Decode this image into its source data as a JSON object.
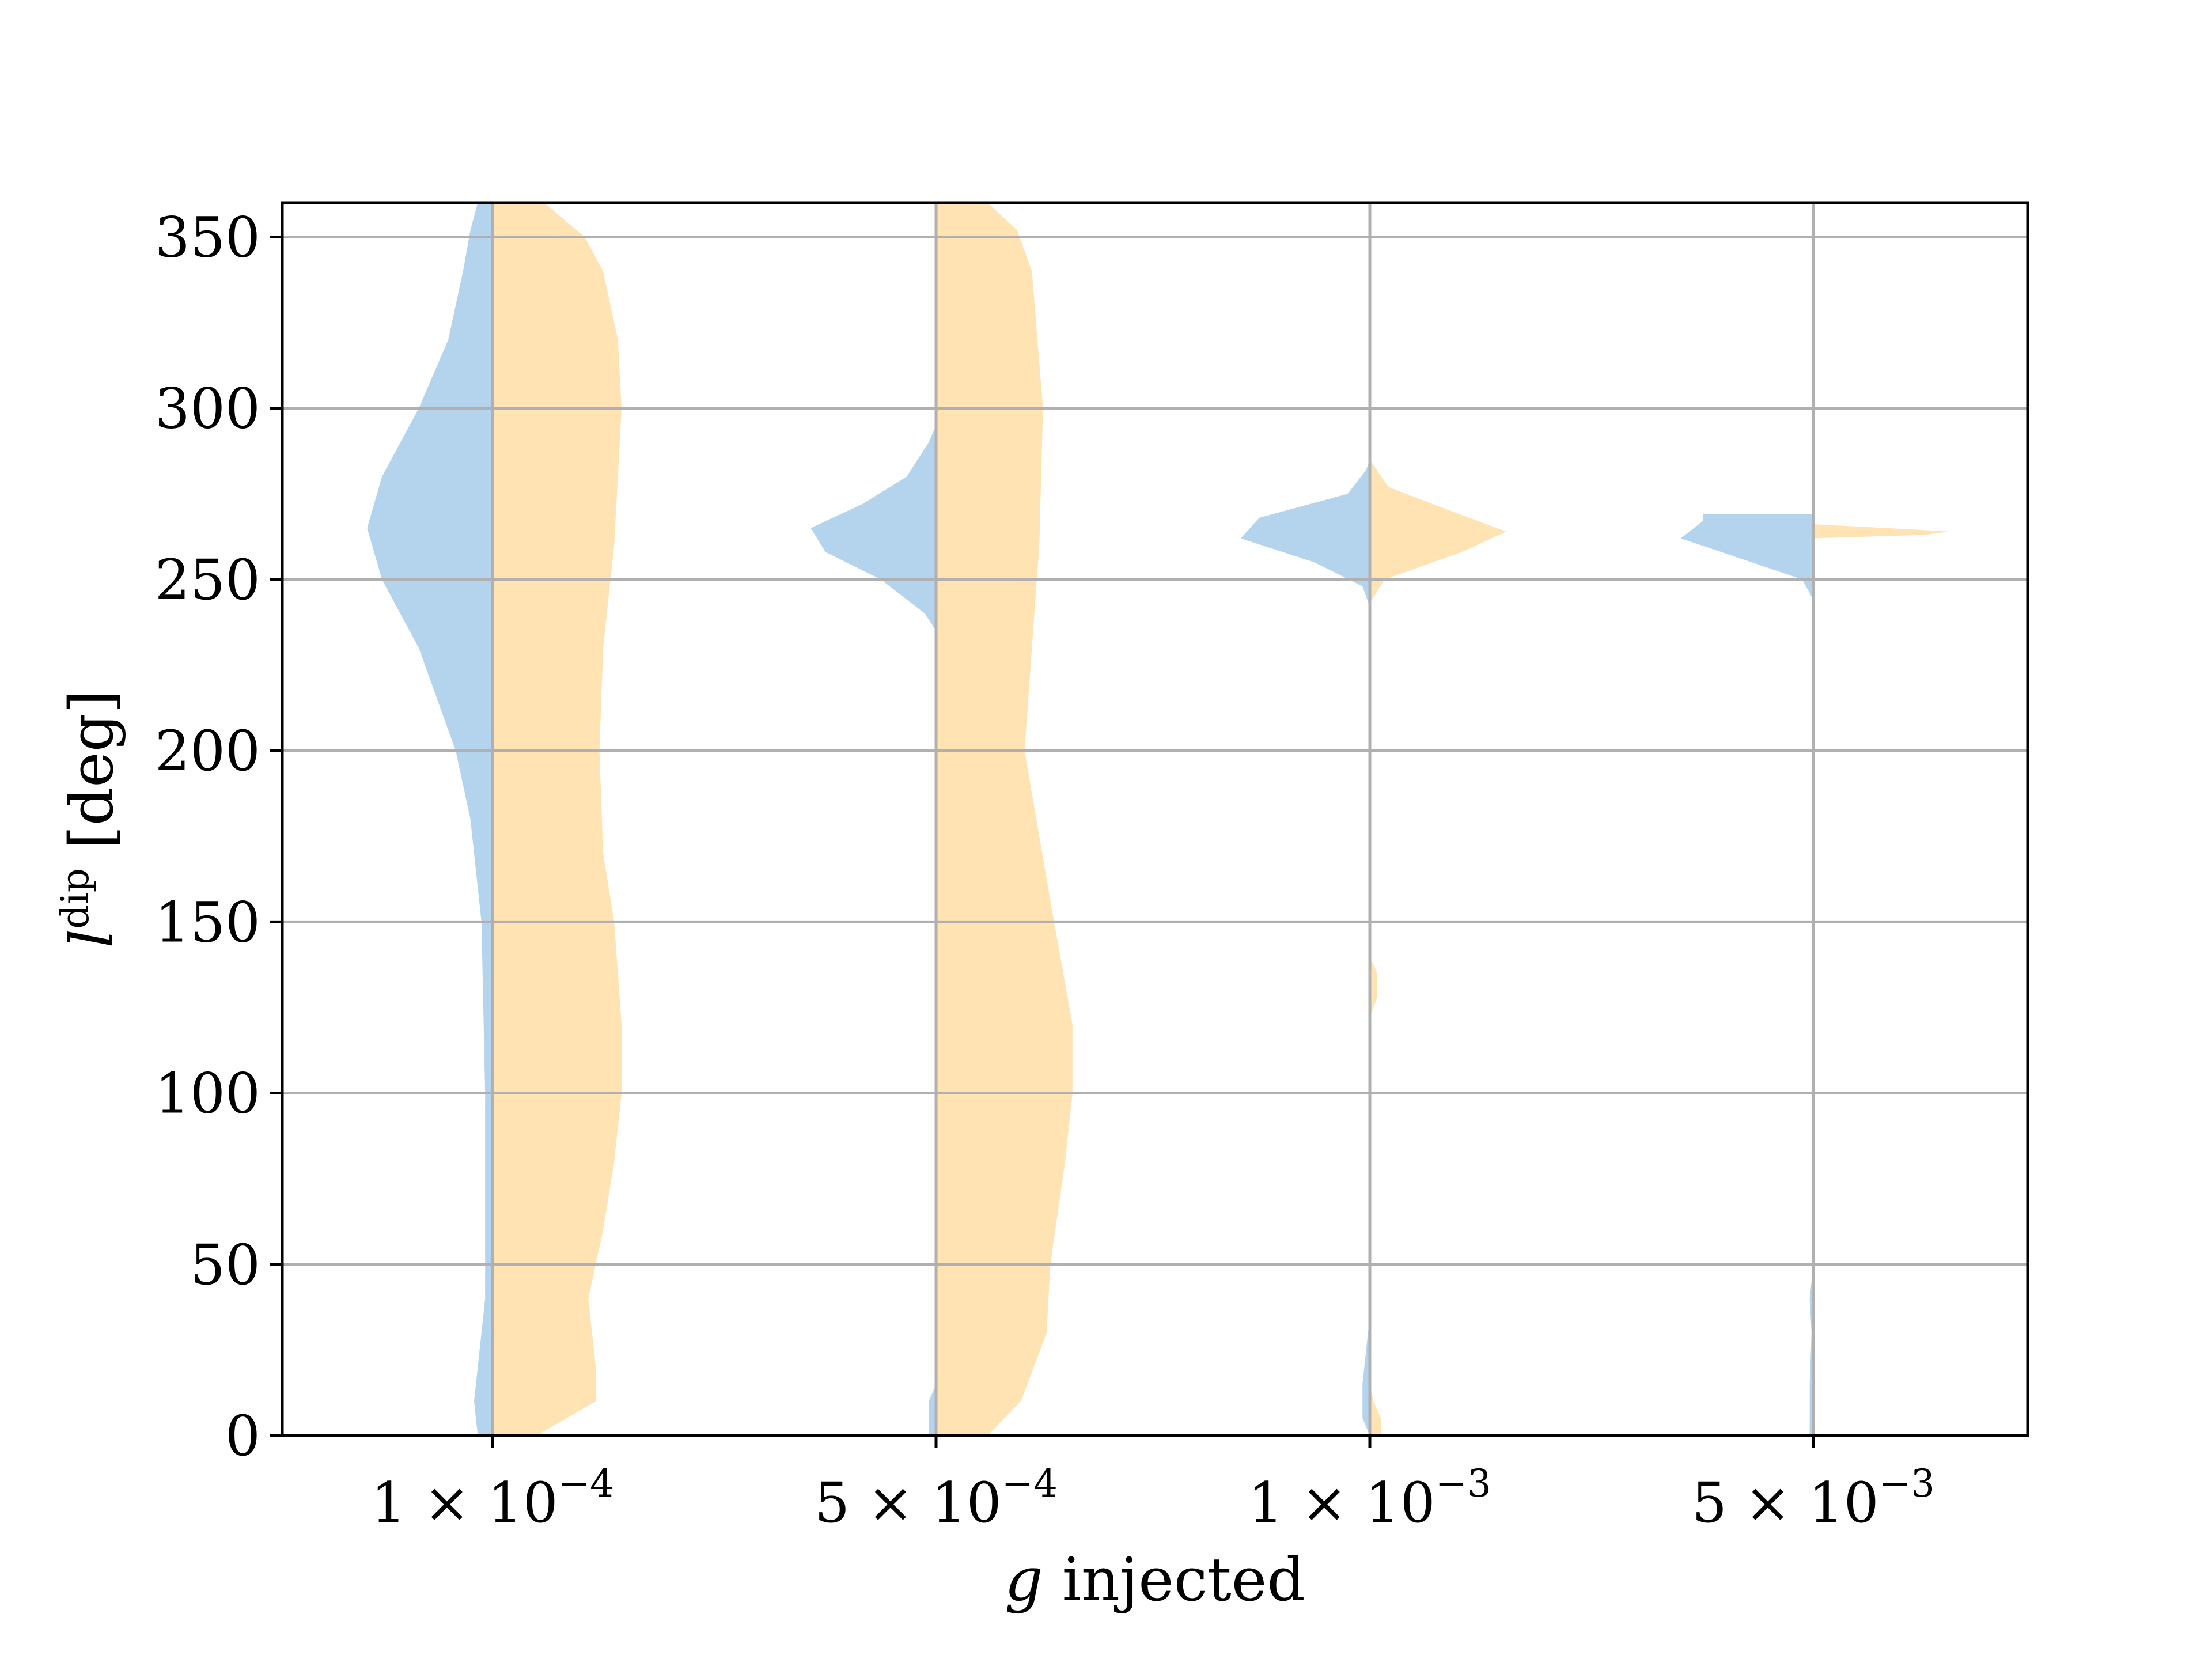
{
  "chart_data": {
    "type": "violin",
    "split": true,
    "xlabel_italic": "g",
    "xlabel_rest": " injected",
    "ylabel_main": "l",
    "ylabel_sup": "dip",
    "ylabel_unit": "[deg]",
    "ylim": [
      0,
      360
    ],
    "yticks": [
      0,
      50,
      100,
      150,
      200,
      250,
      300,
      350
    ],
    "grid": true,
    "colors": {
      "left": "#b3d4ec",
      "right": "#ffe3b3",
      "grid": "#b0b0b0"
    },
    "categories": [
      {
        "mantissa": "1",
        "times": "×",
        "base": "10",
        "exponent": "−4"
      },
      {
        "mantissa": "5",
        "times": "×",
        "base": "10",
        "exponent": "−4"
      },
      {
        "mantissa": "1",
        "times": "×",
        "base": "10",
        "exponent": "−3"
      },
      {
        "mantissa": "5",
        "times": "×",
        "base": "10",
        "exponent": "−3"
      }
    ],
    "violins": [
      {
        "left": [
          [
            0,
            0.04
          ],
          [
            10,
            0.05
          ],
          [
            20,
            0.04
          ],
          [
            40,
            0.02
          ],
          [
            60,
            0.02
          ],
          [
            100,
            0.02
          ],
          [
            150,
            0.03
          ],
          [
            180,
            0.06
          ],
          [
            200,
            0.1
          ],
          [
            230,
            0.2
          ],
          [
            250,
            0.3
          ],
          [
            265,
            0.34
          ],
          [
            280,
            0.3
          ],
          [
            300,
            0.2
          ],
          [
            320,
            0.12
          ],
          [
            340,
            0.08
          ],
          [
            352,
            0.06
          ],
          [
            360,
            0.04
          ]
        ],
        "right": [
          [
            0,
            0.12
          ],
          [
            10,
            0.28
          ],
          [
            20,
            0.28
          ],
          [
            40,
            0.26
          ],
          [
            60,
            0.3
          ],
          [
            80,
            0.33
          ],
          [
            100,
            0.35
          ],
          [
            120,
            0.35
          ],
          [
            150,
            0.33
          ],
          [
            170,
            0.3
          ],
          [
            200,
            0.29
          ],
          [
            230,
            0.3
          ],
          [
            260,
            0.33
          ],
          [
            300,
            0.35
          ],
          [
            320,
            0.34
          ],
          [
            340,
            0.3
          ],
          [
            350,
            0.25
          ],
          [
            360,
            0.14
          ]
        ]
      },
      {
        "left": [
          [
            0,
            0.02
          ],
          [
            10,
            0.02
          ],
          [
            15,
            0
          ],
          [
            235,
            0
          ],
          [
            240,
            0.03
          ],
          [
            250,
            0.15
          ],
          [
            258,
            0.3
          ],
          [
            265,
            0.34
          ],
          [
            272,
            0.2
          ],
          [
            280,
            0.08
          ],
          [
            290,
            0.02
          ],
          [
            295,
            0
          ]
        ],
        "right": [
          [
            0,
            0.14
          ],
          [
            10,
            0.23
          ],
          [
            30,
            0.3
          ],
          [
            50,
            0.31
          ],
          [
            80,
            0.35
          ],
          [
            100,
            0.37
          ],
          [
            120,
            0.37
          ],
          [
            150,
            0.32
          ],
          [
            200,
            0.24
          ],
          [
            230,
            0.26
          ],
          [
            260,
            0.28
          ],
          [
            300,
            0.29
          ],
          [
            340,
            0.26
          ],
          [
            352,
            0.22
          ],
          [
            360,
            0.14
          ]
        ]
      },
      {
        "left": [
          [
            0,
            0
          ],
          [
            5,
            0.02
          ],
          [
            15,
            0.02
          ],
          [
            25,
            0.01
          ],
          [
            35,
            0
          ],
          [
            242,
            0
          ],
          [
            248,
            0.02
          ],
          [
            255,
            0.15
          ],
          [
            262,
            0.35
          ],
          [
            268,
            0.3
          ],
          [
            275,
            0.06
          ],
          [
            282,
            0.01
          ],
          [
            285,
            0
          ]
        ],
        "right": [
          [
            0,
            0.03
          ],
          [
            5,
            0.03
          ],
          [
            10,
            0.01
          ],
          [
            15,
            0
          ],
          [
            122,
            0
          ],
          [
            128,
            0.02
          ],
          [
            135,
            0.02
          ],
          [
            140,
            0
          ],
          [
            243,
            0
          ],
          [
            250,
            0.04
          ],
          [
            258,
            0.25
          ],
          [
            264,
            0.37
          ],
          [
            270,
            0.22
          ],
          [
            277,
            0.05
          ],
          [
            285,
            0
          ]
        ]
      },
      {
        "left": [
          [
            0,
            0.01
          ],
          [
            15,
            0.01
          ],
          [
            30,
            0.005
          ],
          [
            40,
            0.01
          ],
          [
            50,
            0
          ],
          [
            244,
            0
          ],
          [
            250,
            0.03
          ],
          [
            258,
            0.25
          ],
          [
            262,
            0.36
          ],
          [
            267,
            0.3
          ],
          [
            269,
            0.3
          ],
          [
            269.1,
            0
          ]
        ],
        "right": [
          [
            262,
            0
          ],
          [
            262.1,
            0.02
          ],
          [
            263,
            0.3
          ],
          [
            264,
            0.37
          ],
          [
            265,
            0.2
          ],
          [
            266,
            0.02
          ],
          [
            266.1,
            0
          ]
        ]
      }
    ]
  }
}
